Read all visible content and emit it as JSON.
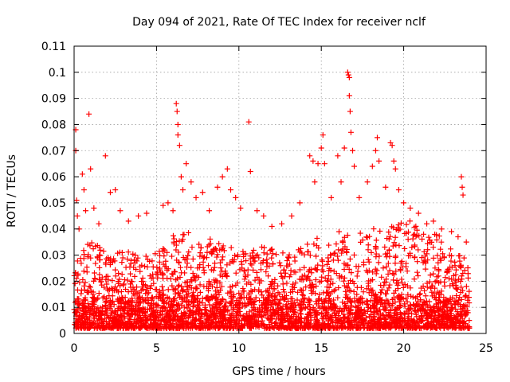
{
  "chart_data": {
    "type": "scatter",
    "title": "Day 094 of 2021, Rate Of TEC Index for receiver nclf",
    "xlabel": "GPS time / hours",
    "ylabel": "ROTI / TECUs",
    "xlim": [
      0,
      25
    ],
    "ylim": [
      0,
      0.11
    ],
    "xticks": [
      0,
      5,
      10,
      15,
      20,
      25
    ],
    "xtick_labels": [
      "0",
      "5",
      "10",
      "15",
      "20",
      "25"
    ],
    "yticks": [
      0,
      0.01,
      0.02,
      0.03,
      0.04,
      0.05,
      0.06,
      0.07,
      0.08,
      0.09,
      0.1,
      0.11
    ],
    "ytick_labels": [
      "0",
      "0.01",
      "0.02",
      "0.03",
      "0.04",
      "0.05",
      "0.06",
      "0.07",
      "0.08",
      "0.09",
      "0.1",
      "0.11"
    ],
    "grid": true,
    "marker": "+",
    "color": "#ff0000",
    "series": [
      {
        "name": "ROTI",
        "points": [
          [
            0.1,
            0.078
          ],
          [
            0.1,
            0.07
          ],
          [
            0.15,
            0.051
          ],
          [
            0.2,
            0.045
          ],
          [
            0.3,
            0.04
          ],
          [
            0.5,
            0.061
          ],
          [
            0.6,
            0.055
          ],
          [
            0.7,
            0.047
          ],
          [
            0.9,
            0.084
          ],
          [
            1.0,
            0.063
          ],
          [
            1.2,
            0.048
          ],
          [
            1.5,
            0.042
          ],
          [
            1.9,
            0.068
          ],
          [
            2.2,
            0.054
          ],
          [
            2.5,
            0.055
          ],
          [
            2.8,
            0.047
          ],
          [
            3.3,
            0.043
          ],
          [
            3.9,
            0.045
          ],
          [
            4.4,
            0.046
          ],
          [
            5.4,
            0.049
          ],
          [
            5.7,
            0.05
          ],
          [
            6.0,
            0.047
          ],
          [
            6.2,
            0.088
          ],
          [
            6.25,
            0.085
          ],
          [
            6.3,
            0.08
          ],
          [
            6.3,
            0.076
          ],
          [
            6.4,
            0.072
          ],
          [
            6.5,
            0.06
          ],
          [
            6.6,
            0.055
          ],
          [
            6.8,
            0.065
          ],
          [
            7.1,
            0.058
          ],
          [
            7.4,
            0.052
          ],
          [
            7.8,
            0.054
          ],
          [
            8.2,
            0.047
          ],
          [
            8.7,
            0.056
          ],
          [
            9.0,
            0.06
          ],
          [
            9.3,
            0.063
          ],
          [
            9.5,
            0.055
          ],
          [
            9.8,
            0.052
          ],
          [
            10.1,
            0.048
          ],
          [
            10.6,
            0.081
          ],
          [
            10.7,
            0.062
          ],
          [
            11.1,
            0.047
          ],
          [
            11.5,
            0.045
          ],
          [
            12.0,
            0.041
          ],
          [
            12.6,
            0.042
          ],
          [
            13.2,
            0.045
          ],
          [
            13.7,
            0.05
          ],
          [
            14.3,
            0.068
          ],
          [
            14.5,
            0.066
          ],
          [
            14.6,
            0.058
          ],
          [
            14.8,
            0.065
          ],
          [
            15.0,
            0.071
          ],
          [
            15.1,
            0.076
          ],
          [
            15.2,
            0.065
          ],
          [
            15.6,
            0.052
          ],
          [
            16.0,
            0.068
          ],
          [
            16.2,
            0.058
          ],
          [
            16.4,
            0.071
          ],
          [
            16.6,
            0.1
          ],
          [
            16.65,
            0.099
          ],
          [
            16.7,
            0.098
          ],
          [
            16.7,
            0.091
          ],
          [
            16.75,
            0.085
          ],
          [
            16.8,
            0.077
          ],
          [
            16.9,
            0.07
          ],
          [
            17.0,
            0.064
          ],
          [
            17.3,
            0.052
          ],
          [
            17.8,
            0.058
          ],
          [
            18.1,
            0.064
          ],
          [
            18.3,
            0.07
          ],
          [
            18.4,
            0.075
          ],
          [
            18.5,
            0.066
          ],
          [
            18.9,
            0.056
          ],
          [
            19.2,
            0.073
          ],
          [
            19.3,
            0.072
          ],
          [
            19.4,
            0.066
          ],
          [
            19.5,
            0.063
          ],
          [
            19.7,
            0.055
          ],
          [
            20.0,
            0.05
          ],
          [
            20.4,
            0.048
          ],
          [
            20.9,
            0.046
          ],
          [
            21.4,
            0.042
          ],
          [
            21.8,
            0.043
          ],
          [
            22.3,
            0.04
          ],
          [
            22.9,
            0.039
          ],
          [
            23.3,
            0.037
          ],
          [
            23.5,
            0.06
          ],
          [
            23.55,
            0.056
          ],
          [
            23.6,
            0.053
          ],
          [
            23.8,
            0.035
          ]
        ],
        "dense_band": {
          "x_range": [
            0,
            24
          ],
          "floor_y": 0.002,
          "envelope": [
            [
              0,
              0.03
            ],
            [
              1,
              0.035
            ],
            [
              2,
              0.033
            ],
            [
              3,
              0.032
            ],
            [
              4,
              0.03
            ],
            [
              5,
              0.031
            ],
            [
              6,
              0.038
            ],
            [
              7,
              0.04
            ],
            [
              8,
              0.037
            ],
            [
              9,
              0.034
            ],
            [
              10,
              0.032
            ],
            [
              11,
              0.034
            ],
            [
              12,
              0.033
            ],
            [
              13,
              0.03
            ],
            [
              14,
              0.034
            ],
            [
              15,
              0.038
            ],
            [
              16,
              0.04
            ],
            [
              17,
              0.038
            ],
            [
              18,
              0.04
            ],
            [
              19,
              0.042
            ],
            [
              20,
              0.044
            ],
            [
              21,
              0.042
            ],
            [
              22,
              0.038
            ],
            [
              23,
              0.034
            ],
            [
              24,
              0.03
            ]
          ]
        }
      }
    ]
  }
}
